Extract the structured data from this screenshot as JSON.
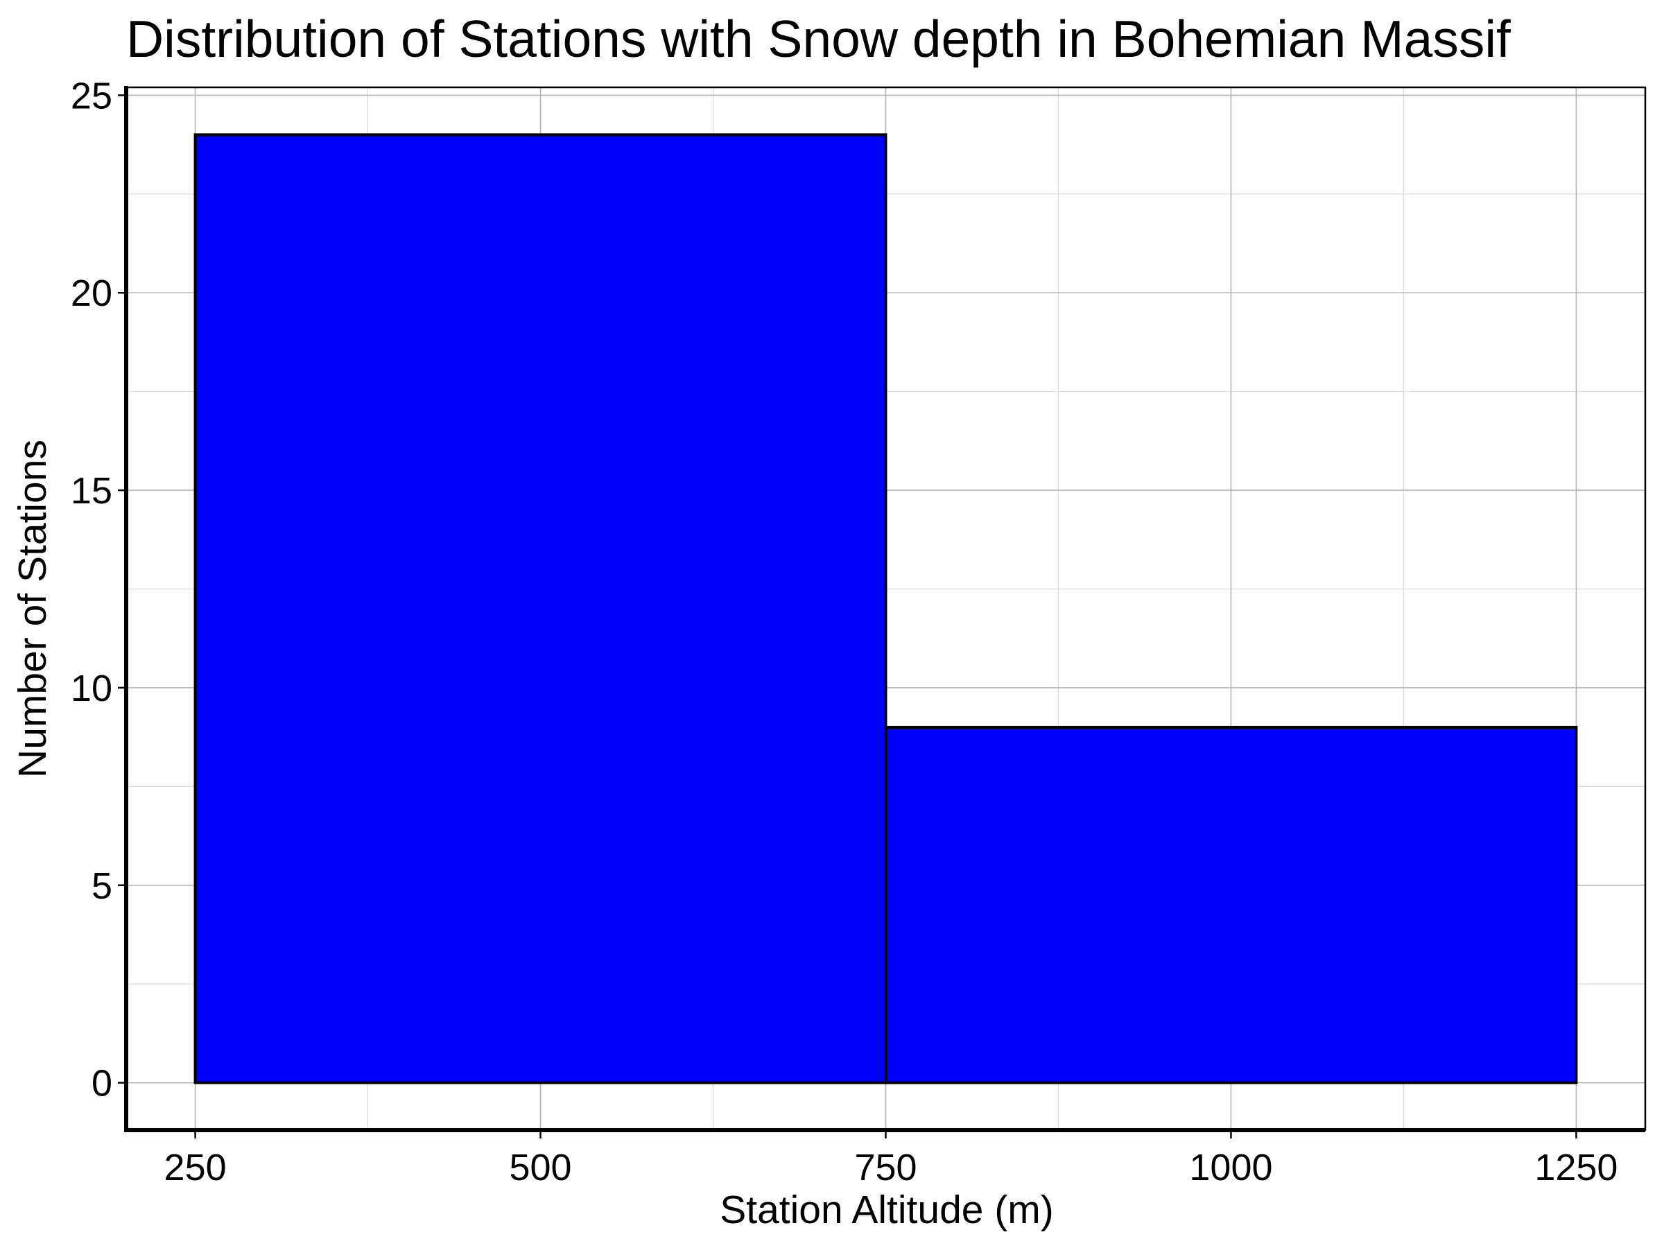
{
  "chart_data": {
    "type": "bar",
    "title": "Distribution of Stations with Snow depth in Bohemian Massif",
    "xlabel": "Station Altitude (m)",
    "ylabel": "Number of Stations",
    "bins": [
      {
        "x_start": 250,
        "x_end": 750,
        "value": 24
      },
      {
        "x_start": 750,
        "x_end": 1250,
        "value": 9
      }
    ],
    "xlim": [
      200,
      1300
    ],
    "ylim": [
      -1.2,
      25.2
    ],
    "x_ticks": [
      250,
      500,
      750,
      1000,
      1250
    ],
    "x_tick_labels": [
      "250",
      "500",
      "750",
      "1000",
      "1250"
    ],
    "y_ticks": [
      0,
      5,
      10,
      15,
      20,
      25
    ],
    "y_tick_labels": [
      "0",
      "5",
      "10",
      "15",
      "20",
      "25"
    ],
    "x_minor_ticks": [
      375,
      625,
      875,
      1125
    ],
    "y_minor_ticks": [
      2.5,
      7.5,
      12.5,
      17.5,
      22.5
    ],
    "grid": true,
    "bar_color": "#0000ff",
    "bar_edge_color": "#000000"
  }
}
